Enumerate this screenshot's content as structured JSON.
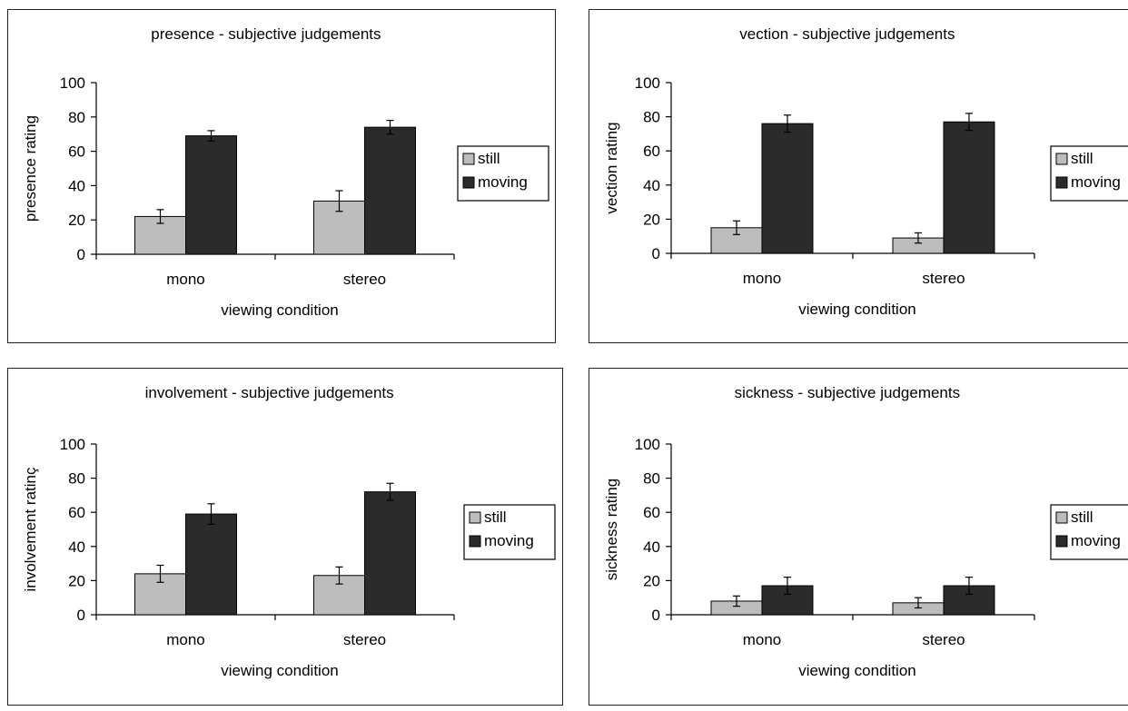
{
  "colors": {
    "still": "#bdbdbd",
    "moving": "#2b2b2b"
  },
  "chart_data": [
    {
      "type": "bar",
      "title": "presence - subjective judgements",
      "xlabel": "viewing condition",
      "ylabel": "presence rating",
      "categories": [
        "mono",
        "stereo"
      ],
      "ylim": [
        0,
        100
      ],
      "yticks": [
        "0",
        "20",
        "40",
        "60",
        "80",
        "100"
      ],
      "legend": "right",
      "series": [
        {
          "name": "still",
          "values": [
            22,
            31
          ],
          "errors": [
            4,
            6
          ]
        },
        {
          "name": "moving",
          "values": [
            69,
            74
          ],
          "errors": [
            3,
            4
          ]
        }
      ]
    },
    {
      "type": "bar",
      "title": "vection - subjective judgements",
      "xlabel": "viewing condition",
      "ylabel": "vection rating",
      "categories": [
        "mono",
        "stereo"
      ],
      "ylim": [
        0,
        100
      ],
      "yticks": [
        "0",
        "20",
        "40",
        "60",
        "80",
        "100"
      ],
      "legend": "right",
      "series": [
        {
          "name": "still",
          "values": [
            15,
            9
          ],
          "errors": [
            4,
            3
          ]
        },
        {
          "name": "moving",
          "values": [
            76,
            77
          ],
          "errors": [
            5,
            5
          ]
        }
      ]
    },
    {
      "type": "bar",
      "title": "involvement - subjective judgements",
      "xlabel": "viewing condition",
      "ylabel": "involvement ratinç",
      "categories": [
        "mono",
        "stereo"
      ],
      "ylim": [
        0,
        100
      ],
      "yticks": [
        "0",
        "20",
        "40",
        "60",
        "80",
        "100"
      ],
      "legend": "right",
      "series": [
        {
          "name": "still",
          "values": [
            24,
            23
          ],
          "errors": [
            5,
            5
          ]
        },
        {
          "name": "moving",
          "values": [
            59,
            72
          ],
          "errors": [
            6,
            5
          ]
        }
      ]
    },
    {
      "type": "bar",
      "title": "sickness - subjective judgements",
      "xlabel": "viewing condition",
      "ylabel": "sickness rating",
      "categories": [
        "mono",
        "stereo"
      ],
      "ylim": [
        0,
        100
      ],
      "yticks": [
        "0",
        "20",
        "40",
        "60",
        "80",
        "100"
      ],
      "legend": "right",
      "series": [
        {
          "name": "still",
          "values": [
            8,
            7
          ],
          "errors": [
            3,
            3
          ]
        },
        {
          "name": "moving",
          "values": [
            17,
            17
          ],
          "errors": [
            5,
            5
          ]
        }
      ]
    }
  ]
}
